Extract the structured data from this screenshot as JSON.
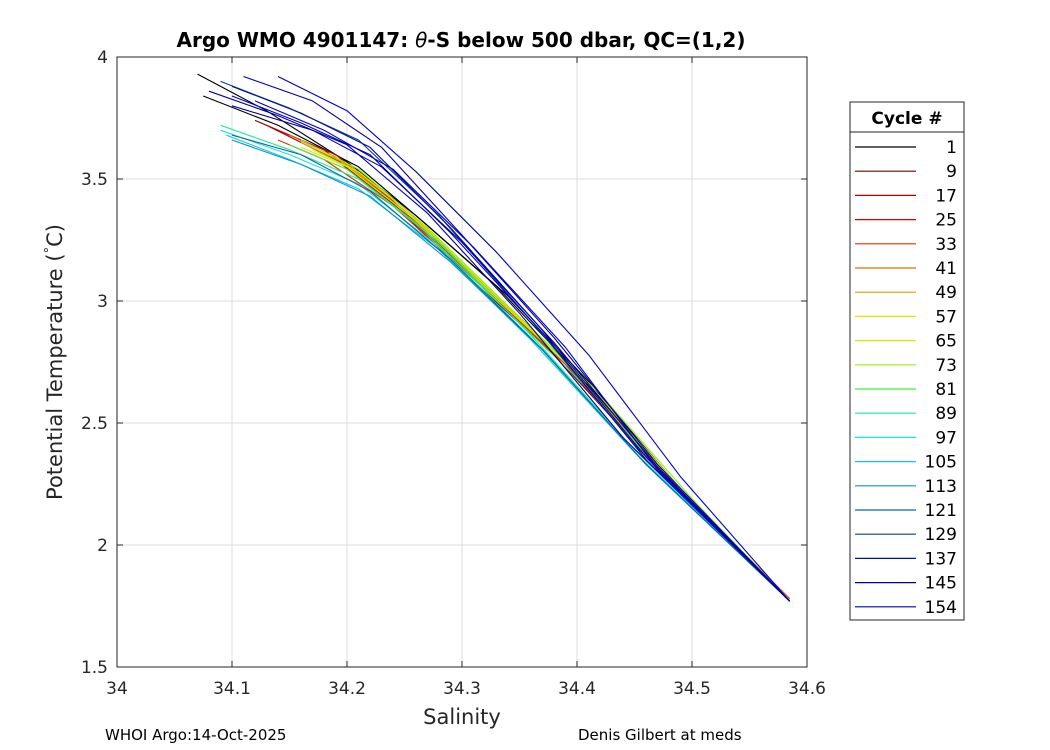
{
  "chart_data": {
    "type": "line",
    "title": "Argo WMO 4901147: θ-S below 500 dbar,  QC=(1,2)",
    "title_parts": {
      "prefix": "Argo WMO 4901147: ",
      "theta": "θ",
      "suffix": "-S below 500 dbar,  QC=(1,2)"
    },
    "xlabel": "Salinity",
    "ylabel_parts": {
      "main": "Potential Temperature (",
      "degree": "°",
      "unit": "C)"
    },
    "xlim": [
      34,
      34.6
    ],
    "ylim": [
      1.5,
      4
    ],
    "xticks": [
      "34",
      "34.1",
      "34.2",
      "34.3",
      "34.4",
      "34.5",
      "34.6"
    ],
    "yticks": [
      "1.5",
      "2",
      "2.5",
      "3",
      "3.5",
      "4"
    ],
    "grid": true,
    "legend": {
      "title": "Cycle #",
      "placement": "right-outside",
      "entries": [
        {
          "label": "1",
          "color": "#000000"
        },
        {
          "label": "9",
          "color": "#6e0000"
        },
        {
          "label": "17",
          "color": "#b20000"
        },
        {
          "label": "25",
          "color": "#d00000"
        },
        {
          "label": "33",
          "color": "#e23000"
        },
        {
          "label": "41",
          "color": "#e86a00"
        },
        {
          "label": "49",
          "color": "#d8a000"
        },
        {
          "label": "57",
          "color": "#e6e600"
        },
        {
          "label": "65",
          "color": "#c8f000"
        },
        {
          "label": "73",
          "color": "#96f000"
        },
        {
          "label": "81",
          "color": "#3cf03c"
        },
        {
          "label": "89",
          "color": "#1ee6a0"
        },
        {
          "label": "97",
          "color": "#14e6d2"
        },
        {
          "label": "105",
          "color": "#10c8e6"
        },
        {
          "label": "113",
          "color": "#0a96c8"
        },
        {
          "label": "121",
          "color": "#0a64aa"
        },
        {
          "label": "129",
          "color": "#0a3c96"
        },
        {
          "label": "137",
          "color": "#00148c"
        },
        {
          "label": "145",
          "color": "#0000a0"
        },
        {
          "label": "154",
          "color": "#0000c8"
        }
      ]
    },
    "series": [
      {
        "color": "#000000",
        "x": [
          34.07,
          34.13,
          34.2,
          34.26,
          34.33,
          34.4,
          34.48,
          34.585
        ],
        "y": [
          3.93,
          3.78,
          3.57,
          3.35,
          3.06,
          2.71,
          2.27,
          1.77
        ]
      },
      {
        "color": "#000000",
        "x": [
          34.075,
          34.14,
          34.21,
          34.27,
          34.34,
          34.41,
          34.49,
          34.585
        ],
        "y": [
          3.84,
          3.72,
          3.55,
          3.31,
          3.02,
          2.67,
          2.23,
          1.77
        ]
      },
      {
        "color": "#6e0000",
        "x": [
          34.12,
          34.18,
          34.24,
          34.31,
          34.38,
          34.46,
          34.585
        ],
        "y": [
          3.74,
          3.62,
          3.4,
          3.08,
          2.78,
          2.37,
          1.77
        ]
      },
      {
        "color": "#b20000",
        "x": [
          34.13,
          34.19,
          34.25,
          34.32,
          34.4,
          34.48,
          34.585
        ],
        "y": [
          3.72,
          3.58,
          3.36,
          3.05,
          2.7,
          2.27,
          1.78
        ]
      },
      {
        "color": "#d00000",
        "x": [
          34.14,
          34.19,
          34.24,
          34.31,
          34.39,
          34.47,
          34.585
        ],
        "y": [
          3.7,
          3.6,
          3.41,
          3.1,
          2.74,
          2.31,
          1.78
        ]
      },
      {
        "color": "#e23000",
        "x": [
          34.14,
          34.18,
          34.24,
          34.31,
          34.39,
          34.47,
          34.585
        ],
        "y": [
          3.66,
          3.58,
          3.39,
          3.09,
          2.74,
          2.31,
          1.77
        ]
      },
      {
        "color": "#e86a00",
        "x": [
          34.15,
          34.19,
          34.25,
          34.32,
          34.4,
          34.48,
          34.585
        ],
        "y": [
          3.68,
          3.59,
          3.37,
          3.06,
          2.7,
          2.27,
          1.78
        ]
      },
      {
        "color": "#d8a000",
        "x": [
          34.16,
          34.2,
          34.25,
          34.32,
          34.4,
          34.48,
          34.585
        ],
        "y": [
          3.65,
          3.56,
          3.38,
          3.06,
          2.7,
          2.27,
          1.77
        ]
      },
      {
        "color": "#e6e600",
        "x": [
          34.16,
          34.2,
          34.26,
          34.33,
          34.41,
          34.49,
          34.585
        ],
        "y": [
          3.63,
          3.55,
          3.33,
          3.01,
          2.66,
          2.23,
          1.77
        ]
      },
      {
        "color": "#c8f000",
        "x": [
          34.17,
          34.21,
          34.26,
          34.33,
          34.41,
          34.49,
          34.585
        ],
        "y": [
          3.62,
          3.53,
          3.34,
          3.02,
          2.66,
          2.23,
          1.77
        ]
      },
      {
        "color": "#96f000",
        "x": [
          34.16,
          34.21,
          34.27,
          34.34,
          34.42,
          34.5,
          34.585
        ],
        "y": [
          3.66,
          3.54,
          3.3,
          2.98,
          2.62,
          2.19,
          1.77
        ]
      },
      {
        "color": "#3cf03c",
        "x": [
          34.15,
          34.2,
          34.26,
          34.33,
          34.41,
          34.49,
          34.585
        ],
        "y": [
          3.64,
          3.54,
          3.32,
          3.0,
          2.64,
          2.21,
          1.77
        ]
      },
      {
        "color": "#1ee6a0",
        "x": [
          34.09,
          34.15,
          34.21,
          34.28,
          34.36,
          34.45,
          34.585
        ],
        "y": [
          3.72,
          3.62,
          3.5,
          3.24,
          2.86,
          2.39,
          1.77
        ]
      },
      {
        "color": "#14e6d2",
        "x": [
          34.09,
          34.15,
          34.21,
          34.28,
          34.36,
          34.45,
          34.585
        ],
        "y": [
          3.7,
          3.6,
          3.48,
          3.22,
          2.85,
          2.38,
          1.77
        ]
      },
      {
        "color": "#10c8e6",
        "x": [
          34.095,
          34.15,
          34.21,
          34.28,
          34.36,
          34.45,
          34.585
        ],
        "y": [
          3.68,
          3.58,
          3.46,
          3.21,
          2.84,
          2.38,
          1.77
        ]
      },
      {
        "color": "#0a96c8",
        "x": [
          34.1,
          34.16,
          34.22,
          34.29,
          34.37,
          34.46,
          34.585
        ],
        "y": [
          3.66,
          3.56,
          3.43,
          3.16,
          2.8,
          2.33,
          1.77
        ]
      },
      {
        "color": "#0a64aa",
        "x": [
          34.1,
          34.16,
          34.22,
          34.29,
          34.37,
          34.46,
          34.585
        ],
        "y": [
          3.68,
          3.6,
          3.45,
          3.17,
          2.8,
          2.33,
          1.77
        ]
      },
      {
        "color": "#0a3c96",
        "x": [
          34.09,
          34.15,
          34.21,
          34.28,
          34.36,
          34.45,
          34.585
        ],
        "y": [
          3.9,
          3.79,
          3.66,
          3.35,
          2.92,
          2.41,
          1.77
        ]
      },
      {
        "color": "#00148c",
        "x": [
          34.1,
          34.16,
          34.22,
          34.29,
          34.37,
          34.46,
          34.585
        ],
        "y": [
          3.88,
          3.77,
          3.63,
          3.3,
          2.88,
          2.36,
          1.77
        ]
      },
      {
        "color": "#0000a0",
        "x": [
          34.11,
          34.17,
          34.23,
          34.3,
          34.38,
          34.47,
          34.585
        ],
        "y": [
          3.92,
          3.82,
          3.63,
          3.27,
          2.85,
          2.33,
          1.77
        ]
      },
      {
        "color": "#0000a0",
        "x": [
          34.08,
          34.14,
          34.2,
          34.27,
          34.35,
          34.44,
          34.585
        ],
        "y": [
          3.86,
          3.76,
          3.64,
          3.36,
          2.95,
          2.44,
          1.77
        ]
      },
      {
        "color": "#0000c8",
        "x": [
          34.1,
          34.16,
          34.22,
          34.29,
          34.37,
          34.46,
          34.585
        ],
        "y": [
          3.84,
          3.73,
          3.6,
          3.28,
          2.87,
          2.35,
          1.77
        ]
      },
      {
        "color": "#0000c8",
        "x": [
          34.14,
          34.2,
          34.26,
          34.33,
          34.41,
          34.49,
          34.585
        ],
        "y": [
          3.92,
          3.78,
          3.53,
          3.2,
          2.78,
          2.28,
          1.77
        ]
      },
      {
        "color": "#0000c8",
        "x": [
          34.12,
          34.18,
          34.24,
          34.31,
          34.39,
          34.47,
          34.585
        ],
        "y": [
          3.82,
          3.7,
          3.54,
          3.22,
          2.81,
          2.31,
          1.77
        ]
      },
      {
        "color": "#0000a0",
        "x": [
          34.1,
          34.17,
          34.23,
          34.3,
          34.38,
          34.47,
          34.585
        ],
        "y": [
          3.8,
          3.7,
          3.55,
          3.24,
          2.83,
          2.32,
          1.77
        ]
      }
    ]
  },
  "footer": {
    "left": "WHOI Argo:14-Oct-2025",
    "right": "Denis Gilbert at meds"
  }
}
